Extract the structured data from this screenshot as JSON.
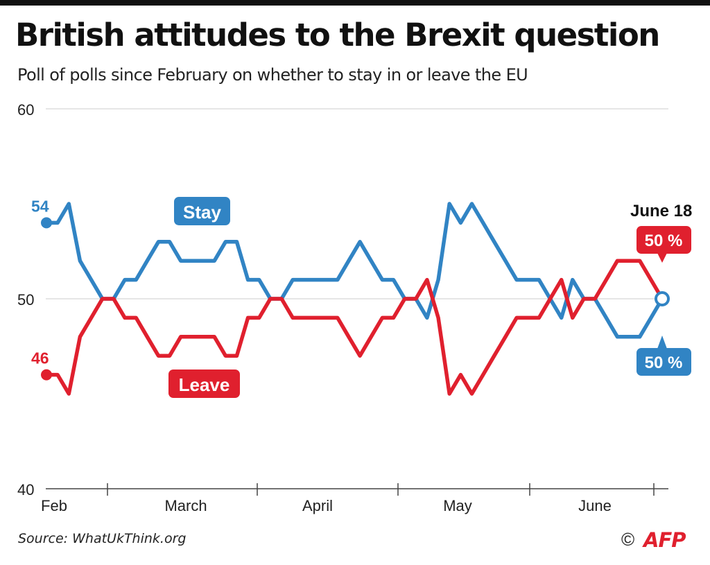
{
  "title": "British attitudes to the Brexit question",
  "subtitle": "Poll of polls since February on whether to stay in or leave the EU",
  "source": "Source: WhatUkThink.org",
  "copyright_symbol": "©",
  "agency": "AFP",
  "colors": {
    "stay": "#3184c4",
    "leave": "#e0202e",
    "grid": "#cccccc",
    "axis": "#444444",
    "agency": "#e0202e"
  },
  "chart_data": {
    "type": "line",
    "ylim": [
      40,
      60
    ],
    "y_ticks": [
      "60",
      "50",
      "40"
    ],
    "month_labels": [
      "Feb",
      "March",
      "April",
      "May",
      "June"
    ],
    "date_marker": "June 18",
    "start_labels": {
      "stay": "54",
      "leave": "46"
    },
    "end_labels": {
      "stay": "50 %",
      "leave": "50 %"
    },
    "series": [
      {
        "name": "Stay",
        "values": [
          54,
          54,
          55,
          52,
          51,
          50,
          50,
          51,
          51,
          52,
          53,
          53,
          52,
          52,
          52,
          52,
          53,
          53,
          51,
          51,
          50,
          50,
          51,
          51,
          51,
          51,
          51,
          52,
          53,
          52,
          51,
          51,
          50,
          50,
          49,
          51,
          55,
          54,
          55,
          54,
          53,
          52,
          51,
          51,
          51,
          50,
          49,
          51,
          50,
          50,
          49,
          48,
          48,
          48,
          49,
          50
        ]
      },
      {
        "name": "Leave",
        "values": [
          46,
          46,
          45,
          48,
          49,
          50,
          50,
          49,
          49,
          48,
          47,
          47,
          48,
          48,
          48,
          48,
          47,
          47,
          49,
          49,
          50,
          50,
          49,
          49,
          49,
          49,
          49,
          48,
          47,
          48,
          49,
          49,
          50,
          50,
          51,
          49,
          45,
          46,
          45,
          46,
          47,
          48,
          49,
          49,
          49,
          50,
          51,
          49,
          50,
          50,
          51,
          52,
          52,
          52,
          51,
          50
        ]
      }
    ]
  }
}
